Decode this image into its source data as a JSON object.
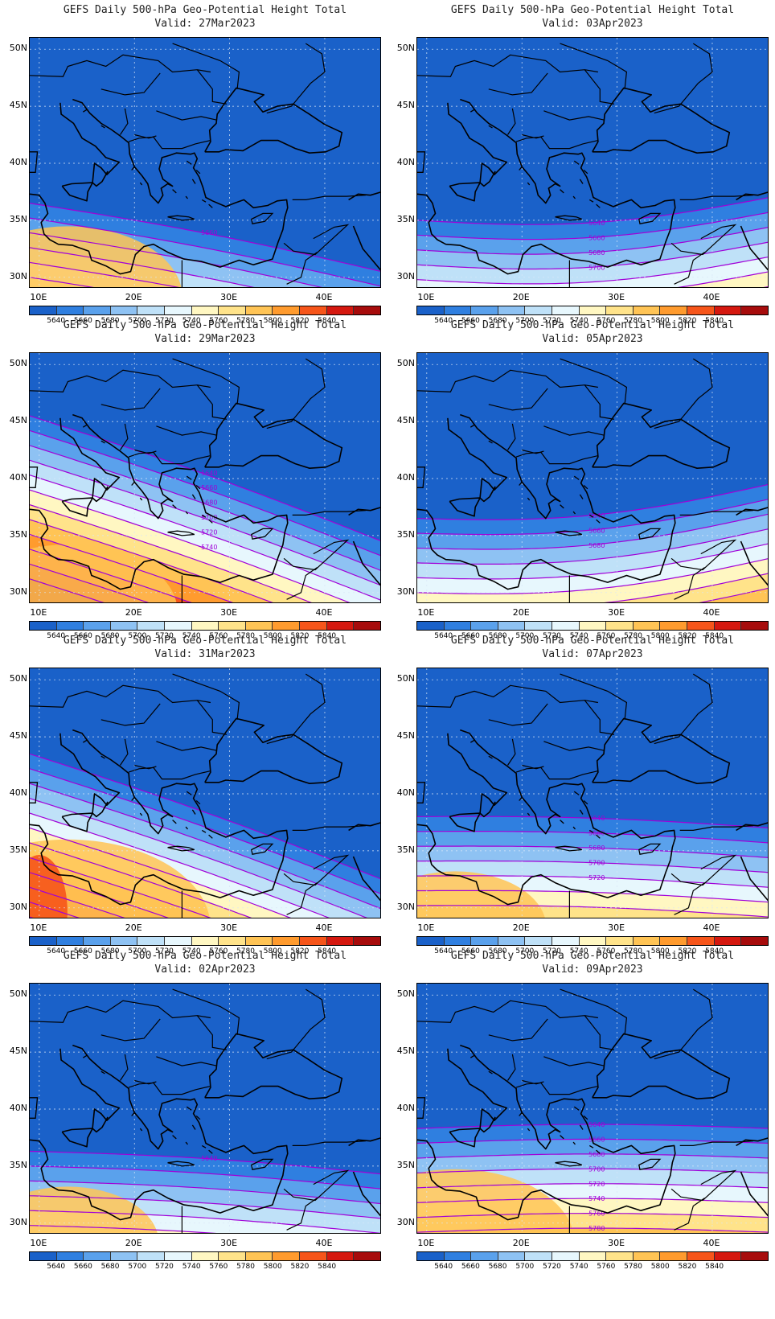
{
  "panels": [
    {
      "title": "GEFS Daily 500-hPa Geo-Potential Height Total",
      "valid": "Valid: 27Mar2023",
      "start": 36.5,
      "tilt": 6,
      "warm": 0.55,
      "labels": [
        "5660"
      ]
    },
    {
      "title": "GEFS Daily 500-hPa Geo-Potential Height Total",
      "valid": "Valid: 03Apr2023",
      "start": 35.0,
      "tilt": -2,
      "warm": 0.0,
      "labels": [
        "5640",
        "5660",
        "5680",
        "5700"
      ]
    },
    {
      "title": "GEFS Daily 500-hPa Geo-Potential Height Total",
      "valid": "Valid: 29Mar2023",
      "start": 45.5,
      "tilt": 11,
      "warm": 0.5,
      "labels": [
        "5640",
        "5660",
        "5680",
        "5700",
        "5720",
        "5740"
      ]
    },
    {
      "title": "GEFS Daily 500-hPa Geo-Potential Height Total",
      "valid": "Valid: 05Apr2023",
      "start": 36.5,
      "tilt": -3,
      "warm": 0.0,
      "labels": [
        "5640",
        "5660",
        "5680"
      ]
    },
    {
      "title": "GEFS Daily 500-hPa Geo-Potential Height Total",
      "valid": "Valid: 31Mar2023",
      "start": 43.5,
      "tilt": 11,
      "warm": 0.85,
      "labels": []
    },
    {
      "title": "GEFS Daily 500-hPa Geo-Potential Height Total",
      "valid": "Valid: 07Apr2023",
      "start": 38.0,
      "tilt": 1,
      "warm": 0.3,
      "labels": [
        "5640",
        "5660",
        "5680",
        "5700",
        "5720"
      ]
    },
    {
      "title": "GEFS Daily 500-hPa Geo-Potential Height Total",
      "valid": "Valid: 02Apr2023",
      "start": 36.3,
      "tilt": 2,
      "warm": 0.3,
      "labels": [
        "5640"
      ]
    },
    {
      "title": "GEFS Daily 500-hPa Geo-Potential Height Total",
      "valid": "Valid: 09Apr2023",
      "start": 38.3,
      "tilt": 0,
      "warm": 0.6,
      "labels": [
        "5640",
        "5660",
        "5680",
        "5700",
        "5720",
        "5740",
        "5760",
        "5780"
      ]
    }
  ],
  "y_ticks": [
    "50N",
    "45N",
    "40N",
    "35N",
    "30N"
  ],
  "x_ticks": [
    "10E",
    "20E",
    "30E",
    "40E"
  ],
  "colorbar": {
    "levels": [
      "5640",
      "5660",
      "5680",
      "5700",
      "5720",
      "5740",
      "5760",
      "5780",
      "5800",
      "5820",
      "5840"
    ],
    "colors": [
      "#1a61c9",
      "#2f7fe0",
      "#5aa1ec",
      "#8ec2f3",
      "#bfe1f8",
      "#e7f7fd",
      "#fff7c2",
      "#ffe38a",
      "#ffc455",
      "#ff9b2e",
      "#f6551a",
      "#d5180f",
      "#a70c0c"
    ]
  },
  "contour_color": "#a100d8"
}
